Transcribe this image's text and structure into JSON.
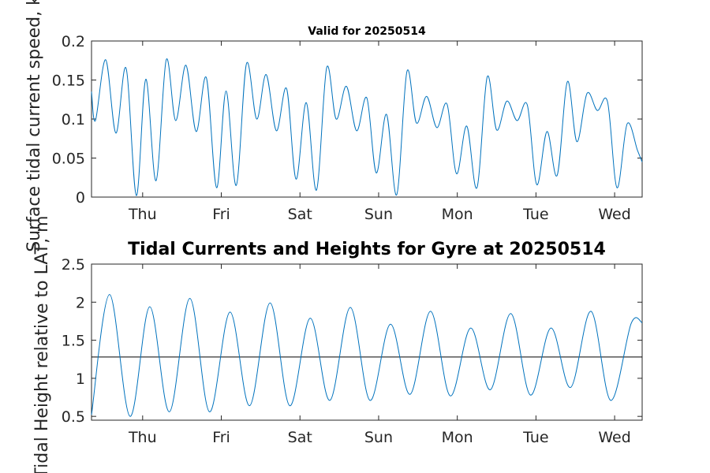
{
  "chart_data": [
    {
      "type": "line",
      "title": "Valid for 20250514",
      "ylabel": "Surface tidal current speed, kn",
      "xlabel": "",
      "x_unit": "day",
      "xlim": [
        0,
        7.0
      ],
      "ylim": [
        0,
        0.2
      ],
      "y_ticks": [
        0,
        0.05,
        0.1,
        0.15,
        0.2
      ],
      "y_tick_labels": [
        "0",
        "0.05",
        "0.1",
        "0.15",
        "0.2"
      ],
      "x_ticks": [
        0.65,
        1.65,
        2.65,
        3.65,
        4.65,
        5.65,
        6.65
      ],
      "x_tick_labels": [
        "Thu",
        "Fri",
        "Sat",
        "Sun",
        "Mon",
        "Tue",
        "Wed"
      ],
      "grid": false,
      "series": [
        {
          "color": "#0072BD",
          "x": [
            0,
            0.05,
            0.18,
            0.31,
            0.44,
            0.57,
            0.69,
            0.82,
            0.95,
            1.07,
            1.2,
            1.33,
            1.46,
            1.59,
            1.71,
            1.84,
            1.97,
            2.1,
            2.22,
            2.35,
            2.48,
            2.6,
            2.73,
            2.86,
            2.99,
            3.11,
            3.24,
            3.37,
            3.5,
            3.62,
            3.75,
            3.88,
            4.01,
            4.13,
            4.26,
            4.39,
            4.52,
            4.64,
            4.77,
            4.9,
            5.03,
            5.15,
            5.28,
            5.41,
            5.54,
            5.66,
            5.79,
            5.92,
            6.05,
            6.17,
            6.3,
            6.43,
            6.56,
            6.68,
            6.81,
            6.94,
            7.0
          ],
          "y": [
            0.135,
            0.098,
            0.176,
            0.082,
            0.165,
            0.002,
            0.151,
            0.021,
            0.176,
            0.098,
            0.169,
            0.084,
            0.153,
            0.012,
            0.136,
            0.015,
            0.171,
            0.1,
            0.157,
            0.085,
            0.139,
            0.023,
            0.121,
            0.009,
            0.166,
            0.1,
            0.142,
            0.085,
            0.127,
            0.031,
            0.106,
            0.003,
            0.161,
            0.095,
            0.129,
            0.089,
            0.119,
            0.03,
            0.091,
            0.012,
            0.154,
            0.086,
            0.123,
            0.098,
            0.118,
            0.016,
            0.084,
            0.028,
            0.148,
            0.071,
            0.133,
            0.111,
            0.122,
            0.012,
            0.094,
            0.06,
            0.045
          ]
        }
      ]
    },
    {
      "type": "line",
      "title": "Tidal Currents and Heights for Gyre at 20250514",
      "ylabel": "Tidal Height relative to LAT, m",
      "xlabel": "",
      "x_unit": "day",
      "xlim": [
        0,
        7.0
      ],
      "ylim": [
        0.45,
        2.5
      ],
      "y_ticks": [
        0.5,
        1,
        1.5,
        2,
        2.5
      ],
      "y_tick_labels": [
        "0.5",
        "1",
        "1.5",
        "2",
        "2.5"
      ],
      "x_ticks": [
        0.65,
        1.65,
        2.65,
        3.65,
        4.65,
        5.65,
        6.65
      ],
      "x_tick_labels": [
        "Thu",
        "Fri",
        "Sat",
        "Sun",
        "Mon",
        "Tue",
        "Wed"
      ],
      "grid": false,
      "reference_line": 1.28,
      "series": [
        {
          "color": "#0072BD",
          "x": [
            0,
            0.23,
            0.49,
            0.74,
            0.99,
            1.25,
            1.5,
            1.76,
            2.01,
            2.27,
            2.52,
            2.78,
            3.03,
            3.29,
            3.54,
            3.8,
            4.05,
            4.31,
            4.56,
            4.82,
            5.07,
            5.33,
            5.58,
            5.84,
            6.09,
            6.35,
            6.6,
            6.86,
            7.0
          ],
          "y": [
            0.52,
            2.1,
            0.5,
            1.94,
            0.56,
            2.05,
            0.56,
            1.87,
            0.64,
            1.99,
            0.64,
            1.79,
            0.71,
            1.93,
            0.71,
            1.71,
            0.79,
            1.88,
            0.77,
            1.66,
            0.85,
            1.85,
            0.78,
            1.66,
            0.88,
            1.88,
            0.71,
            1.72,
            1.73
          ]
        }
      ]
    }
  ]
}
